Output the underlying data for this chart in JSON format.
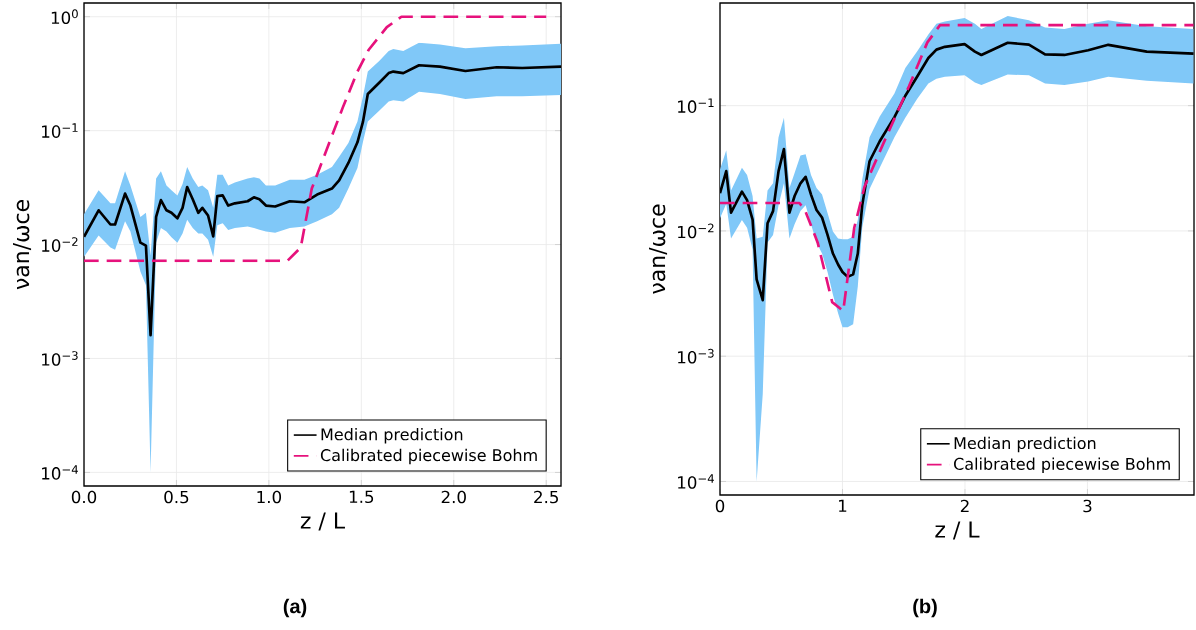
{
  "chart_data": [
    {
      "type": "line",
      "xlabel": "z / L",
      "ylabel": "νan/ωce",
      "log": "y",
      "grid": true,
      "legend": "bottom right",
      "xlim": [
        0,
        2.58
      ],
      "ylim": [
        7.6e-05,
        1.32
      ],
      "xticks": [
        {
          "value": 0,
          "label": "0.0"
        },
        0.5,
        {
          "value": 1,
          "label": "1.0"
        },
        1.5,
        {
          "value": 2,
          "label": "2.0"
        },
        2.5
      ],
      "yticks": [
        {
          "value": 0.0001,
          "label": "10$^{−4}$"
        },
        {
          "value": 0.001,
          "label": "10$^{−3}$"
        },
        {
          "value": 0.01,
          "label": "10$^{−2}$"
        },
        {
          "value": 0.1,
          "label": "10$^{−1}$"
        },
        {
          "value": 1,
          "label": "10$^{0}$"
        }
      ],
      "annotations": [
        "(a)"
      ],
      "series": [
        {
          "name": "Median prediction",
          "color": "#000000",
          "line_style": "solid",
          "x": [
            0,
            0.079,
            0.143,
            0.168,
            0.222,
            0.251,
            0.305,
            0.335,
            0.36,
            0.39,
            0.416,
            0.446,
            0.473,
            0.505,
            0.533,
            0.558,
            0.588,
            0.618,
            0.64,
            0.671,
            0.699,
            0.721,
            0.75,
            0.78,
            0.816,
            0.885,
            0.919,
            0.949,
            0.984,
            1.034,
            1.113,
            1.192,
            1.261,
            1.341,
            1.38,
            1.43,
            1.479,
            1.509,
            1.535,
            1.598,
            1.648,
            1.673,
            1.727,
            1.812,
            1.925,
            2.063,
            2.232,
            2.37,
            2.58
          ],
          "values": [
            0.0117,
            0.02,
            0.015,
            0.015,
            0.028,
            0.022,
            0.0104,
            0.0098,
            0.0016,
            0.0175,
            0.0246,
            0.02,
            0.019,
            0.017,
            0.021,
            0.032,
            0.025,
            0.019,
            0.021,
            0.018,
            0.0118,
            0.0266,
            0.027,
            0.022,
            0.023,
            0.024,
            0.026,
            0.025,
            0.022,
            0.0216,
            0.024,
            0.0235,
            0.0275,
            0.031,
            0.0366,
            0.052,
            0.079,
            0.12,
            0.21,
            0.265,
            0.32,
            0.33,
            0.32,
            0.375,
            0.365,
            0.334,
            0.36,
            0.355,
            0.365
          ],
          "upper": [
            0.0185,
            0.03,
            0.023,
            0.023,
            0.044,
            0.033,
            0.0175,
            0.019,
            0.008,
            0.038,
            0.044,
            0.033,
            0.03,
            0.027,
            0.034,
            0.048,
            0.038,
            0.032,
            0.033,
            0.03,
            0.021,
            0.041,
            0.041,
            0.033,
            0.035,
            0.038,
            0.039,
            0.038,
            0.033,
            0.033,
            0.037,
            0.037,
            0.041,
            0.048,
            0.059,
            0.078,
            0.12,
            0.2,
            0.33,
            0.41,
            0.5,
            0.52,
            0.5,
            0.59,
            0.57,
            0.53,
            0.55,
            0.56,
            0.58
          ],
          "lower": [
            0.0078,
            0.012,
            0.0094,
            0.009,
            0.016,
            0.013,
            0.0058,
            0.0044,
            0.0001,
            0.0104,
            0.014,
            0.013,
            0.0116,
            0.0104,
            0.0125,
            0.0165,
            0.014,
            0.0125,
            0.0125,
            0.011,
            0.0078,
            0.0148,
            0.0154,
            0.0134,
            0.014,
            0.0144,
            0.014,
            0.0135,
            0.013,
            0.0127,
            0.014,
            0.0144,
            0.016,
            0.0185,
            0.021,
            0.031,
            0.047,
            0.08,
            0.12,
            0.15,
            0.18,
            0.185,
            0.18,
            0.22,
            0.21,
            0.19,
            0.2,
            0.2,
            0.205
          ]
        },
        {
          "name": "Calibrated piecewise Bohm",
          "color": "#e6127c",
          "line_style": "dashed",
          "x": [
            0,
            1.1,
            1.172,
            1.232,
            1.341,
            1.4,
            1.479,
            1.539,
            1.638,
            1.717,
            2.5
          ],
          "values": [
            0.0072,
            0.0072,
            0.0094,
            0.031,
            0.09,
            0.16,
            0.33,
            0.51,
            0.81,
            1.0,
            1.0
          ]
        }
      ]
    },
    {
      "type": "line",
      "xlabel": "z / L",
      "ylabel": "νan/ωce",
      "log": "y",
      "grid": true,
      "legend": "bottom right",
      "xlim": [
        0,
        3.87
      ],
      "ylim": [
        7.8e-05,
        0.66
      ],
      "xticks": [
        0,
        1,
        2,
        3
      ],
      "yticks": [
        {
          "value": 0.0001,
          "label": "10$^{−4}$"
        },
        {
          "value": 0.001,
          "label": "10$^{−3}$"
        },
        {
          "value": 0.01,
          "label": "10$^{−2}$"
        },
        {
          "value": 0.1,
          "label": "10$^{−1}$"
        }
      ],
      "annotations": [
        "(b)"
      ],
      "series": [
        {
          "name": "Median prediction",
          "color": "#000000",
          "line_style": "solid",
          "x": [
            0,
            0.051,
            0.09,
            0.179,
            0.221,
            0.266,
            0.299,
            0.349,
            0.388,
            0.433,
            0.478,
            0.522,
            0.567,
            0.609,
            0.657,
            0.699,
            0.743,
            0.788,
            0.833,
            0.878,
            0.922,
            0.964,
            1.0,
            1.042,
            1.087,
            1.125,
            1.161,
            1.221,
            1.304,
            1.424,
            1.513,
            1.609,
            1.701,
            1.767,
            1.836,
            1.997,
            2.081,
            2.134,
            2.349,
            2.522,
            2.654,
            2.812,
            3.006,
            3.17,
            3.484,
            3.866
          ],
          "values": [
            0.02,
            0.03,
            0.014,
            0.0206,
            0.0176,
            0.0123,
            0.0041,
            0.0028,
            0.0115,
            0.0144,
            0.03,
            0.045,
            0.014,
            0.019,
            0.024,
            0.027,
            0.0195,
            0.0147,
            0.0128,
            0.0093,
            0.0066,
            0.0054,
            0.0047,
            0.0043,
            0.0045,
            0.0066,
            0.016,
            0.036,
            0.052,
            0.081,
            0.12,
            0.17,
            0.24,
            0.28,
            0.295,
            0.31,
            0.27,
            0.254,
            0.318,
            0.307,
            0.257,
            0.254,
            0.277,
            0.306,
            0.27,
            0.26
          ],
          "upper": [
            0.031,
            0.044,
            0.021,
            0.032,
            0.028,
            0.019,
            0.0087,
            0.009,
            0.021,
            0.024,
            0.056,
            0.08,
            0.022,
            0.029,
            0.04,
            0.041,
            0.028,
            0.022,
            0.0195,
            0.0139,
            0.0099,
            0.0087,
            0.0086,
            0.0086,
            0.009,
            0.0122,
            0.0256,
            0.056,
            0.082,
            0.125,
            0.2,
            0.27,
            0.37,
            0.45,
            0.47,
            0.5,
            0.45,
            0.41,
            0.52,
            0.48,
            0.42,
            0.41,
            0.45,
            0.48,
            0.43,
            0.41
          ],
          "lower": [
            0.0126,
            0.0165,
            0.0087,
            0.0122,
            0.0106,
            0.0071,
            0.0001,
            0.0005,
            0.0081,
            0.0093,
            0.016,
            0.024,
            0.0087,
            0.0113,
            0.0144,
            0.016,
            0.0113,
            0.0081,
            0.0066,
            0.0047,
            0.0031,
            0.0022,
            0.0017,
            0.0017,
            0.0018,
            0.0036,
            0.0106,
            0.0216,
            0.032,
            0.056,
            0.08,
            0.113,
            0.15,
            0.164,
            0.17,
            0.175,
            0.153,
            0.146,
            0.177,
            0.175,
            0.15,
            0.146,
            0.156,
            0.17,
            0.158,
            0.15
          ]
        },
        {
          "name": "Calibrated piecewise Bohm",
          "color": "#e6127c",
          "line_style": "dashed",
          "x": [
            0,
            0.648,
            0.693,
            0.797,
            0.916,
            1.006,
            1.096,
            1.179,
            1.334,
            1.543,
            1.693,
            1.797,
            3.866
          ],
          "values": [
            0.0167,
            0.0167,
            0.0147,
            0.0081,
            0.0027,
            0.0023,
            0.0106,
            0.0224,
            0.05,
            0.143,
            0.32,
            0.44,
            0.44
          ]
        }
      ]
    }
  ]
}
